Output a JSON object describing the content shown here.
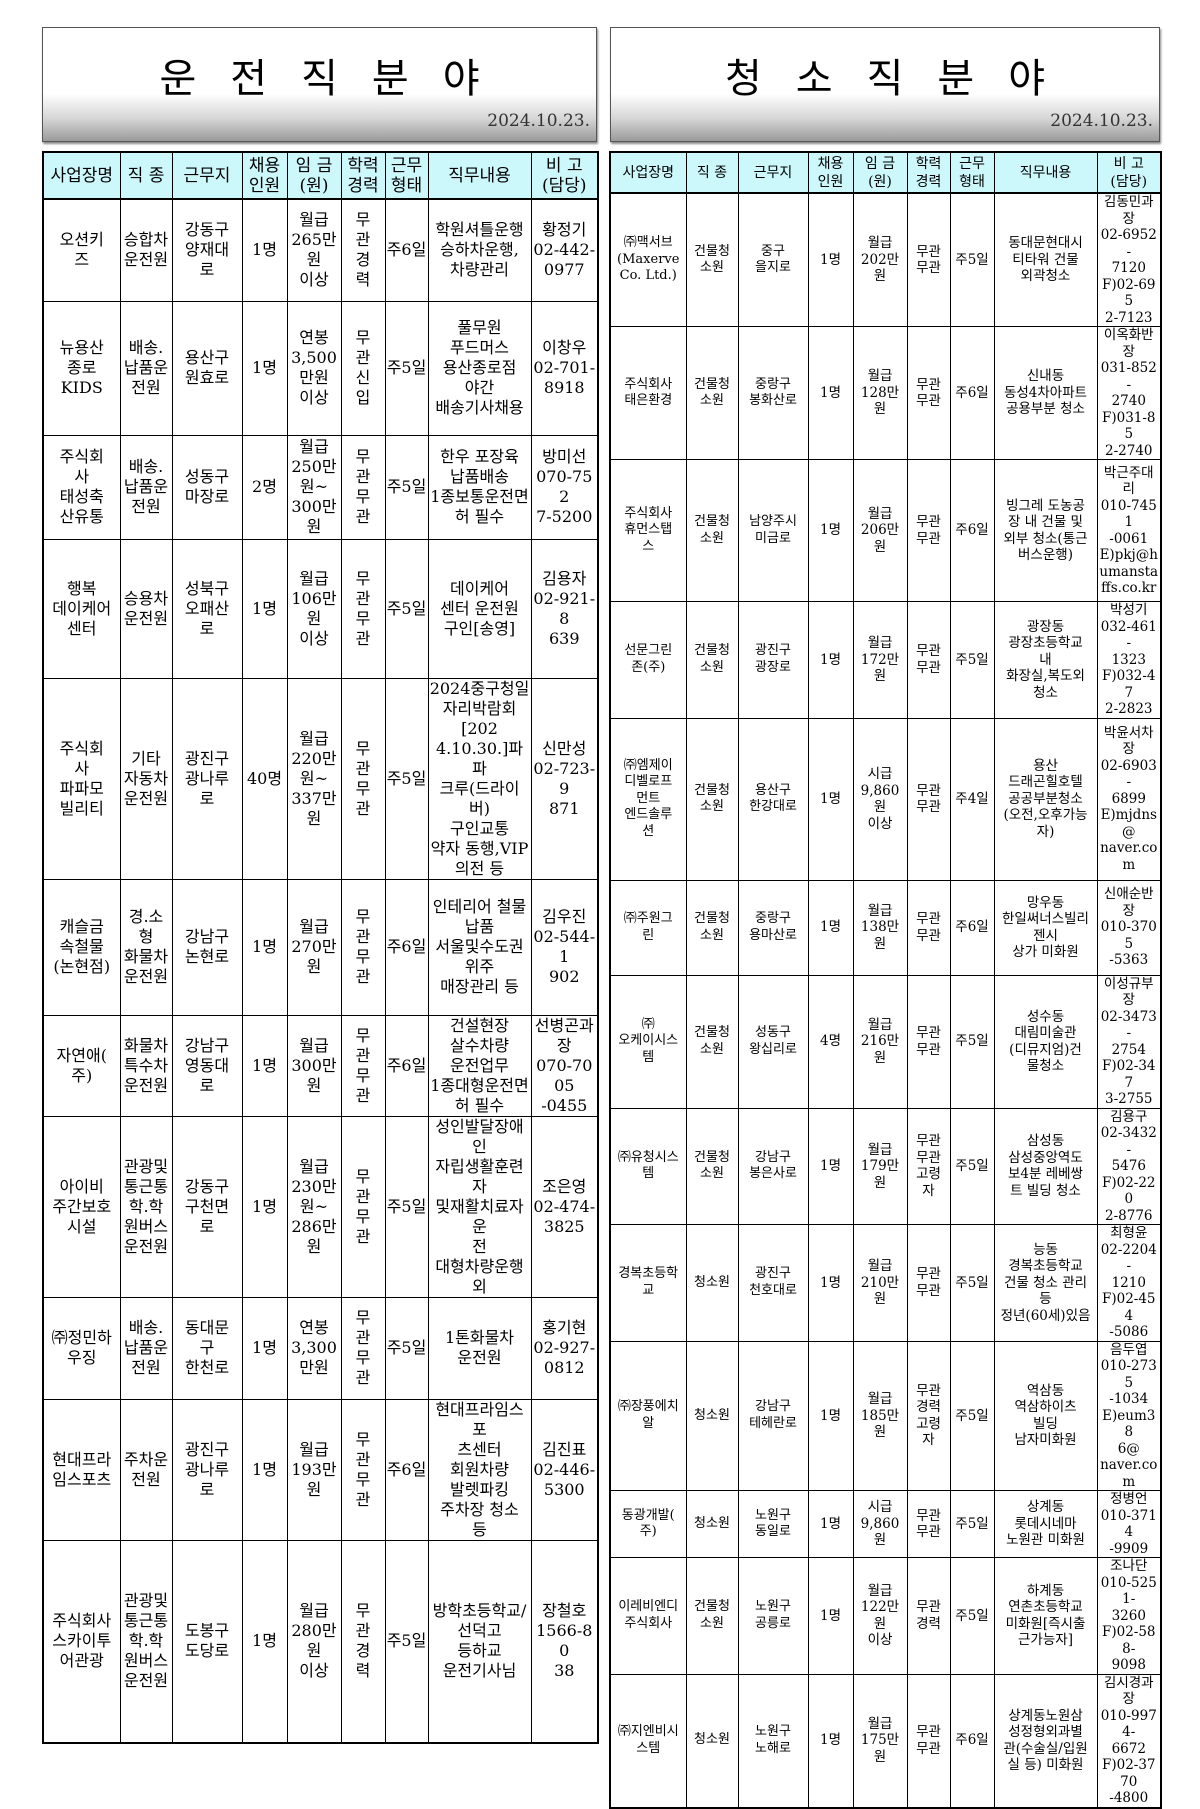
{
  "left": {
    "title": "운전직분야",
    "date": "2024.10.23.",
    "headers": [
      "사업장명",
      "직 종",
      "근무지",
      "채용\n인원",
      "임 금\n(원)",
      "학력\n경력",
      "근무\n형태",
      "직무내용",
      "비 고\n(담당)"
    ],
    "rows": [
      [
        "오션키\n즈",
        "승합차\n운전원",
        "강동구\n양재대\n로",
        "1명",
        "월급\n265만\n원\n이상",
        "무\n관\n경\n력",
        "주6일",
        "학원셔틀운행\n승하차운행,\n차량관리",
        "황정기\n02-442-\n0977"
      ],
      [
        "뉴용산\n종로\nKIDS",
        "배송.\n납품운\n전원",
        "용산구\n원효로",
        "1명",
        "연봉\n3,500\n만원\n이상",
        "무\n관\n신\n입",
        "주5일",
        "풀무원\n푸드머스\n용산종로점\n야간\n배송기사채용",
        "이창우\n02-701-\n8918"
      ],
      [
        "주식회\n사\n태성축\n산유통",
        "배송.\n납품운\n전원",
        "성동구\n마장로",
        "2명",
        "월급\n250만\n원~\n300만\n원",
        "무\n관\n무\n관",
        "주5일",
        "한우 포장육\n납품배송\n1종보통운전면\n허 필수",
        "방미선\n070-752\n7-5200"
      ],
      [
        "행복\n데이케어\n센터",
        "승용차\n운전원",
        "성북구\n오패산\n로",
        "1명",
        "월급\n106만\n원\n이상",
        "무\n관\n무\n관",
        "주5일",
        "데이케어\n센터 운전원\n구인[송영]",
        "김용자\n02-921-8\n639"
      ],
      [
        "주식회\n사\n파파모\n빌리티",
        "기타\n자동차\n운전원",
        "광진구\n광나루\n로",
        "40명",
        "월급\n220만\n원~\n337만\n원",
        "무\n관\n무\n관",
        "주5일",
        "2024중구청일\n자리박람회[202\n4.10.30.]파파\n크루(드라이버)\n구인교통\n약자 동행,VIP\n의전 등",
        "신만성\n02-723-9\n871"
      ],
      [
        "캐슬금\n속철물\n(논현점)",
        "경.소\n형\n화물차\n운전원",
        "강남구\n논현로",
        "1명",
        "월급\n270만\n원",
        "무\n관\n무\n관",
        "주6일",
        "인테리어 철물\n납품\n서울및수도권\n위주\n매장관리 등",
        "김우진\n02-544-1\n902"
      ],
      [
        "자연애(\n주)",
        "화물차\n특수차\n운전원",
        "강남구\n영동대\n로",
        "1명",
        "월급\n300만\n원",
        "무\n관\n무\n관",
        "주6일",
        "건설현장\n살수차량\n운전업무\n1종대형운전면\n허 필수",
        "선병곤과\n장\n070-7005\n-0455"
      ],
      [
        "아이비\n주간보호\n시설",
        "관광및\n통근통\n학.학\n원버스\n운전원",
        "강동구\n구천면\n로",
        "1명",
        "월급\n230만\n원~\n286만\n원",
        "무\n관\n무\n관",
        "주5일",
        "성인발달장애인\n자립생활훈련자\n및재활치료자운\n전\n대형차량운행\n외",
        "조은영\n02-474-\n3825"
      ],
      [
        "㈜정민하\n우징",
        "배송.\n납품운\n전원",
        "동대문\n구\n한천로",
        "1명",
        "연봉\n3,300\n만원",
        "무\n관\n무\n관",
        "주5일",
        "1톤화물차\n운전원",
        "홍기현\n02-927-\n0812"
      ],
      [
        "현대프라\n임스포츠",
        "주차운\n전원",
        "광진구\n광나루\n로",
        "1명",
        "월급\n193만\n원",
        "무\n관\n무\n관",
        "주6일",
        "현대프라임스포\n츠센터\n회원차량\n발렛파킹\n주차장 청소\n등",
        "김진표\n02-446-\n5300"
      ],
      [
        "주식회사\n스카이투\n어관광",
        "관광및\n통근통\n학.학\n원버스\n운전원",
        "도봉구\n도당로",
        "1명",
        "월급\n280만\n원\n이상",
        "무\n관\n경\n력",
        "주5일",
        "방학초등학교/\n선덕고\n등하교\n운전기사님",
        "장철호\n1566-80\n38"
      ]
    ]
  },
  "right": {
    "title": "청소직분야",
    "date": "2024.10.23.",
    "headers": [
      "사업장명",
      "직 종",
      "근무지",
      "채용\n인원",
      "임 금\n(원)",
      "학력\n경력",
      "근무\n형태",
      "직무내용",
      "비 고\n(담당)"
    ],
    "rows": [
      [
        "㈜맥서브\n(Maxerve\nCo. Ltd.)",
        "건물청\n소원",
        "중구\n을지로",
        "1명",
        "월급\n202만\n원",
        "무관\n무관",
        "주5일",
        "동대문현대시\n티타워 건물\n외곽청소",
        "김동민과\n장\n02-6952-\n7120\nF)02-695\n2-7123"
      ],
      [
        "주식회사\n태은환경",
        "건물청\n소원",
        "중랑구\n봉화산로",
        "1명",
        "월급\n128만\n원",
        "무관\n무관",
        "주6일",
        "신내동\n동성4차아파트\n공용부분 청소",
        "이옥화반\n장\n031-852-\n2740\nF)031-85\n2-2740"
      ],
      [
        "주식회사\n휴먼스탭\n스",
        "건물청\n소원",
        "남양주시\n미금로",
        "1명",
        "월급\n206만\n원",
        "무관\n무관",
        "주6일",
        "빙그레 도농공\n장 내 건물 및\n외부 청소(통근\n버스운행)",
        "박근주대\n리\n010-7451\n-0061\nE)pkj@h\numansta\nffs.co.kr"
      ],
      [
        "선문그린\n존(주)",
        "건물청\n소원",
        "광진구\n광장로",
        "1명",
        "월급\n172만\n원",
        "무관\n무관",
        "주5일",
        "광장동\n광장초등학교\n내\n화장실,복도외\n청소",
        "박성기\n032-461-\n1323\nF)032-47\n2-2823"
      ],
      [
        "㈜엠제이\n디벨로프\n먼트\n엔드솔루\n션",
        "건물청\n소원",
        "용산구\n한강대로",
        "1명",
        "시급\n9,860\n원\n이상",
        "무관\n무관",
        "주4일",
        "용산\n드래곤힐호텔\n공공부분청소\n(오전,오후가능\n자)",
        "박윤서차\n장\n02-6903-\n6899\nE)mjdns\n@\nnaver.co\nm"
      ],
      [
        "㈜주원그\n린",
        "건물청\n소원",
        "중랑구\n용마산로",
        "1명",
        "월급\n138만\n원",
        "무관\n무관",
        "주6일",
        "망우동\n한일써너스빌리\n젠시\n상가 미화원",
        "신애순반\n장\n010-3705\n-5363"
      ],
      [
        "㈜\n오케이시스\n템",
        "건물청\n소원",
        "성동구\n왕십리로",
        "4명",
        "월급\n216만\n원",
        "무관\n무관",
        "주5일",
        "성수동\n대림미술관\n(디뮤지엄)건\n물청소",
        "이성규부\n장\n02-3473-\n2754\nF)02-347\n3-2755"
      ],
      [
        "㈜유청시스\n템",
        "건물청\n소원",
        "강남구\n봉은사로",
        "1명",
        "월급\n179만\n원",
        "무관\n무관\n고령\n자",
        "주5일",
        "삼성동\n삼성중앙역도\n보4분 레베쌍\n트 빌딩 청소",
        "김용구\n02-3432-\n5476\nF)02-220\n2-8776"
      ],
      [
        "경복초등학\n교",
        "청소원",
        "광진구\n천호대로",
        "1명",
        "월급\n210만\n원",
        "무관\n무관",
        "주5일",
        "능동\n경복초등학교\n건물 청소 관리\n등\n정년(60세)있음",
        "최형윤\n02-2204-\n1210\nF)02-454\n-5086"
      ],
      [
        "㈜장풍에치\n알",
        "청소원",
        "강남구\n테헤란로",
        "1명",
        "월급\n185만\n원",
        "무관\n경력\n고령\n자",
        "주5일",
        "역삼동\n역삼하이츠\n빌딩\n남자미화원",
        "음두엽\n010-2735\n-1034\nE)eum38\n6@\nnaver.co\nm"
      ],
      [
        "동광개발(\n주)",
        "청소원",
        "노원구\n동일로",
        "1명",
        "시급\n9,860\n원",
        "무관\n무관",
        "주5일",
        "상계동\n롯데시네마\n노원관 미화원",
        "정병언\n010-3714\n-9909"
      ],
      [
        "이레비엔디\n주식회사",
        "건물청\n소원",
        "노원구\n공릉로",
        "1명",
        "월급\n122만\n원\n이상",
        "무관\n경력",
        "주5일",
        "하계동\n연촌초등학교\n미화원[즉시출\n근가능자]",
        "조나단\n010-5251-\n3260\nF)02-588-\n9098"
      ],
      [
        "㈜지엔비시\n스템",
        "청소원",
        "노원구\n노해로",
        "1명",
        "월급\n175만\n원",
        "무관\n무관",
        "주6일",
        "상계동노원삼\n성정형외과별\n관(수술실/입원\n실 등) 미화원",
        "김시경과장\n010-9974-\n6672\nF)02-3770\n-4800"
      ]
    ]
  }
}
